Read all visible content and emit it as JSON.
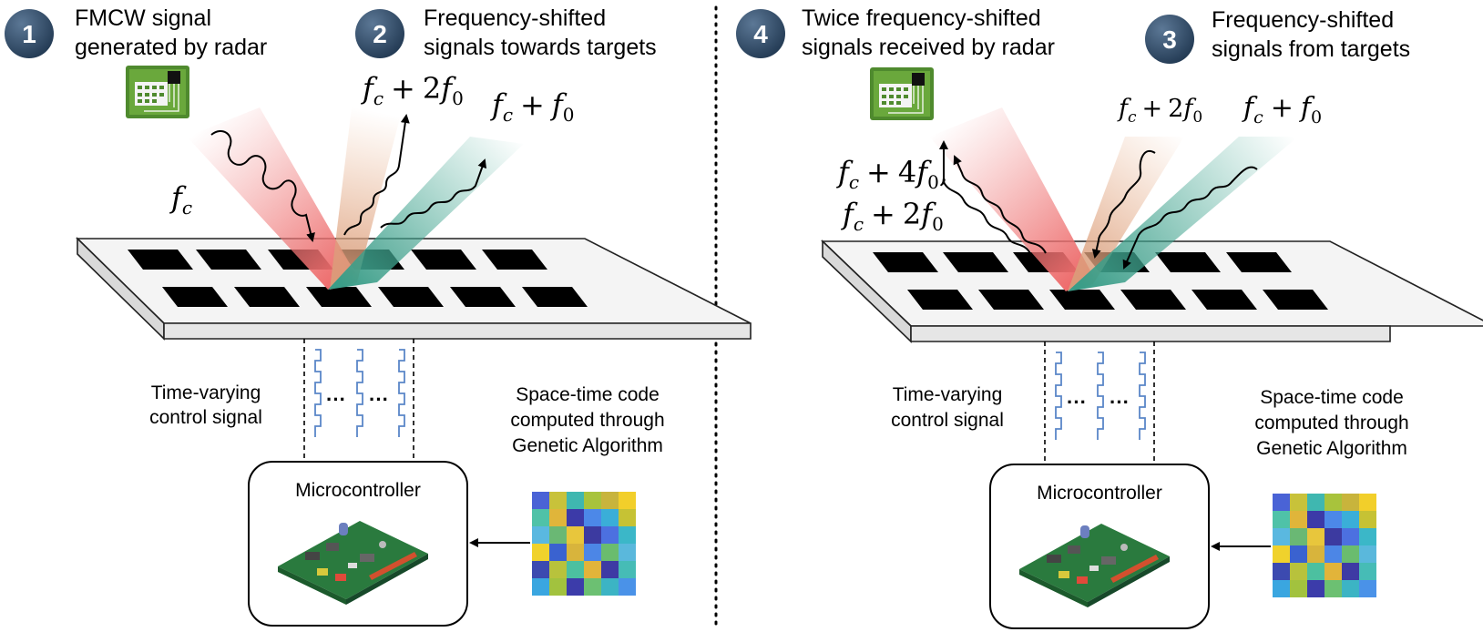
{
  "colors": {
    "badge": "#2f4962",
    "beam_red": "#f08a8a",
    "beam_orange": "#e9b08a",
    "beam_teal": "#4fae9a",
    "panel_top": "#f3f3f3",
    "element": "#000000",
    "control_wire": "#5a86c8",
    "board": "#2a7a3e",
    "radar_board": "#4f8a2e"
  },
  "left": {
    "step1": {
      "number": "1",
      "line1": "FMCW signal",
      "line2": "generated by radar"
    },
    "step2": {
      "number": "2",
      "line1": "Frequency-shifted",
      "line2": "signals towards targets"
    },
    "math_fc": {
      "base": "f",
      "sub": "c"
    },
    "math_fc_2f0": {
      "base": "f",
      "sub": "c",
      "op": "+",
      "coef": "2",
      "f": "f",
      "sub2": "0"
    },
    "math_fc_f0": {
      "base": "f",
      "sub": "c",
      "op": "+",
      "f": "f",
      "sub2": "0"
    },
    "control_label": {
      "line1": "Time-varying",
      "line2": "control signal"
    },
    "code_label": {
      "line1": "Space-time code",
      "line2": "computed through",
      "line3": "Genetic Algorithm"
    },
    "mcu_label": "Microcontroller",
    "ellipsis": "···"
  },
  "right": {
    "step4": {
      "number": "4",
      "line1": "Twice frequency-shifted",
      "line2": "signals received by radar"
    },
    "step3": {
      "number": "3",
      "line1": "Frequency-shifted",
      "line2": "signals from targets"
    },
    "math_fc_2f0": {
      "base": "f",
      "sub": "c",
      "op": "+",
      "coef": "2",
      "f": "f",
      "sub2": "0"
    },
    "math_fc_f0": {
      "base": "f",
      "sub": "c",
      "op": "+",
      "f": "f",
      "sub2": "0"
    },
    "math_fc_4f0": {
      "base": "f",
      "sub": "c",
      "op": "+",
      "coef": "4",
      "f": "f",
      "sub2": "0",
      "tail": ","
    },
    "math_fc_2f0_b": {
      "base": "f",
      "sub": "c",
      "op": "+",
      "coef": "2",
      "f": "f",
      "sub2": "0"
    },
    "control_label": {
      "line1": "Time-varying",
      "line2": "control signal"
    },
    "code_label": {
      "line1": "Space-time code",
      "line2": "computed through",
      "line3": "Genetic Algorithm"
    },
    "mcu_label": "Microcontroller",
    "ellipsis": "···"
  },
  "code_matrix_left": [
    [
      "#4a63d6",
      "#c8c23a",
      "#3fb7b0",
      "#a8c33c",
      "#c8b43c",
      "#f2cf2a"
    ],
    [
      "#4fc2a8",
      "#e0b53a",
      "#3c3aa8",
      "#4c88e8",
      "#3aaed8",
      "#c6c234"
    ],
    [
      "#5ab8e0",
      "#6ab874",
      "#e8c63c",
      "#3c3aa0",
      "#4c70e0",
      "#3bb7c8"
    ],
    [
      "#f0d22c",
      "#3a62d0",
      "#d8b43c",
      "#4c86e6",
      "#6abc6e",
      "#5ab8dc"
    ],
    [
      "#3c4ab0",
      "#b8c23c",
      "#4cc0a0",
      "#e2b43a",
      "#3e3aa4",
      "#46bcb6"
    ],
    [
      "#3aa6e0",
      "#a2c23e",
      "#3c3caa",
      "#6cc072",
      "#3cb4c4",
      "#4a92e8"
    ]
  ],
  "code_matrix_right": [
    [
      "#4a63d6",
      "#c8c23a",
      "#3fb7b0",
      "#a8c33c",
      "#c8b43c",
      "#f2cf2a"
    ],
    [
      "#4fc2a8",
      "#e0b53a",
      "#3c3aa8",
      "#4c88e8",
      "#3aaed8",
      "#c6c234"
    ],
    [
      "#5ab8e0",
      "#6ab874",
      "#e8c63c",
      "#3c3aa0",
      "#4c70e0",
      "#3bb7c8"
    ],
    [
      "#f0d22c",
      "#3a62d0",
      "#d8b43c",
      "#4c86e6",
      "#6abc6e",
      "#5ab8dc"
    ],
    [
      "#3c4ab0",
      "#b8c23c",
      "#4cc0a0",
      "#e2b43a",
      "#3e3aa4",
      "#46bcb6"
    ],
    [
      "#3aa6e0",
      "#a2c23e",
      "#3c3caa",
      "#6cc072",
      "#3cb4c4",
      "#4a92e8"
    ]
  ]
}
